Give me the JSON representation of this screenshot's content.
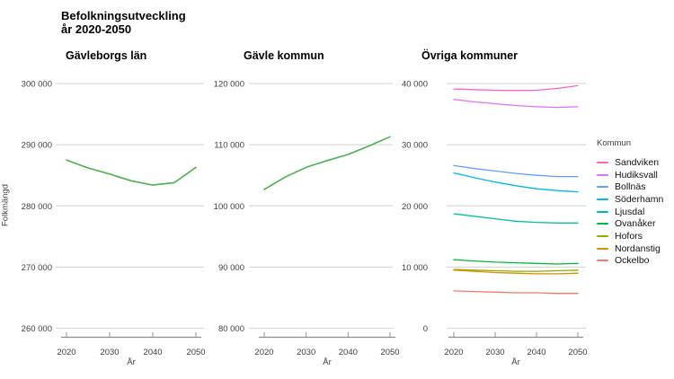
{
  "title": {
    "line1": "Befolkningsutveckling",
    "line2": "år 2020-2050"
  },
  "ylabel": "Folkmängd",
  "xlabel": "År",
  "legend": {
    "title": "Kommun"
  },
  "chart_data": {
    "type": "line",
    "x": [
      2020,
      2025,
      2030,
      2035,
      2040,
      2045,
      2050
    ],
    "xticks": [
      2020,
      2030,
      2040,
      2050
    ],
    "panels": [
      {
        "title": "Gävleborgs län",
        "ylim": [
          260000,
          300000
        ],
        "yticks": [
          260000,
          270000,
          280000,
          290000,
          300000
        ],
        "series": [
          {
            "name": "Gävleborgs län",
            "color": "#4CB050",
            "values": [
              287500,
              286200,
              285200,
              284100,
              283400,
              283800,
              286300
            ]
          }
        ]
      },
      {
        "title": "Gävle kommun",
        "ylim": [
          80000,
          120000
        ],
        "yticks": [
          80000,
          90000,
          100000,
          110000,
          120000
        ],
        "series": [
          {
            "name": "Gävle kommun",
            "color": "#4CB050",
            "values": [
              102700,
              104700,
              106300,
              107400,
              108400,
              109800,
              111300
            ]
          }
        ]
      },
      {
        "title": "Övriga kommuner",
        "ylim": [
          0,
          40000
        ],
        "yticks": [
          0,
          10000,
          20000,
          30000,
          40000
        ],
        "series": [
          {
            "name": "Sandviken",
            "color": "#FF61C3",
            "values": [
              39100,
              39000,
              38900,
              38850,
              38900,
              39200,
              39650
            ]
          },
          {
            "name": "Hudiksvall",
            "color": "#DB72FB",
            "values": [
              37400,
              37000,
              36700,
              36400,
              36200,
              36100,
              36200
            ]
          },
          {
            "name": "Bollnäs",
            "color": "#619CFF",
            "values": [
              26600,
              26100,
              25700,
              25300,
              25000,
              24800,
              24800
            ]
          },
          {
            "name": "Söderhamn",
            "color": "#00B9E3",
            "values": [
              25400,
              24600,
              23900,
              23300,
              22800,
              22500,
              22300
            ]
          },
          {
            "name": "Ljusdal",
            "color": "#00C19F",
            "values": [
              18700,
              18300,
              17900,
              17500,
              17300,
              17200,
              17200
            ]
          },
          {
            "name": "Ovanåker",
            "color": "#00BA38",
            "values": [
              11200,
              11000,
              10800,
              10700,
              10600,
              10500,
              10600
            ]
          },
          {
            "name": "Hofors",
            "color": "#93AA00",
            "values": [
              9600,
              9500,
              9400,
              9300,
              9300,
              9400,
              9500
            ]
          },
          {
            "name": "Nordanstig",
            "color": "#D39200",
            "values": [
              9500,
              9300,
              9100,
              9000,
              8900,
              8900,
              9000
            ]
          },
          {
            "name": "Ockelbo",
            "color": "#F8766D",
            "values": [
              6100,
              6000,
              5900,
              5800,
              5800,
              5700,
              5700
            ]
          }
        ]
      }
    ]
  }
}
